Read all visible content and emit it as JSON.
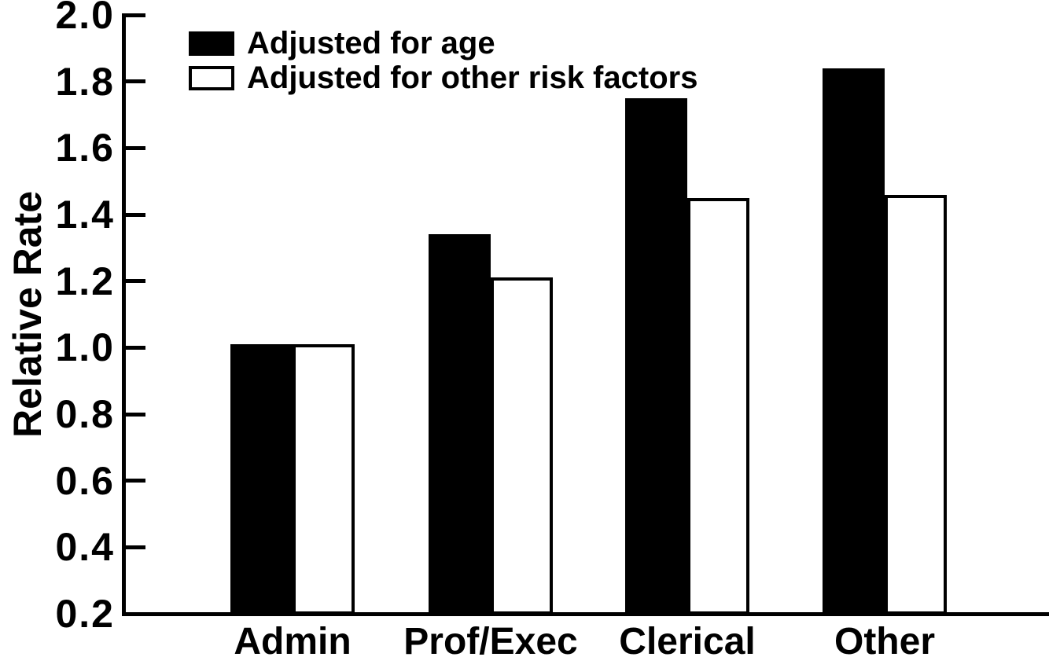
{
  "colors": {
    "ink": "#000000",
    "background": "#ffffff"
  },
  "chart_data": {
    "type": "bar",
    "title": "",
    "xlabel": "",
    "ylabel": "Relative Rate",
    "categories": [
      "Admin",
      "Prof/Exec",
      "Clerical",
      "Other"
    ],
    "series": [
      {
        "name": "Adjusted for age",
        "fill": "black",
        "values": [
          1.01,
          1.34,
          1.75,
          1.84
        ]
      },
      {
        "name": "Adjusted for other risk factors",
        "fill": "white",
        "values": [
          1.01,
          1.21,
          1.45,
          1.46
        ]
      }
    ],
    "ylim": [
      0.2,
      2.0
    ],
    "yticks": [
      0.2,
      0.4,
      0.6,
      0.8,
      1.0,
      1.2,
      1.4,
      1.6,
      1.8,
      2.0
    ],
    "ytick_labels": [
      "0.2",
      "0.4",
      "0.6",
      "0.8",
      "1.0",
      "1.2",
      "1.4",
      "1.6",
      "1.8",
      "2.0"
    ],
    "grid": false,
    "legend_position": "top-left"
  }
}
